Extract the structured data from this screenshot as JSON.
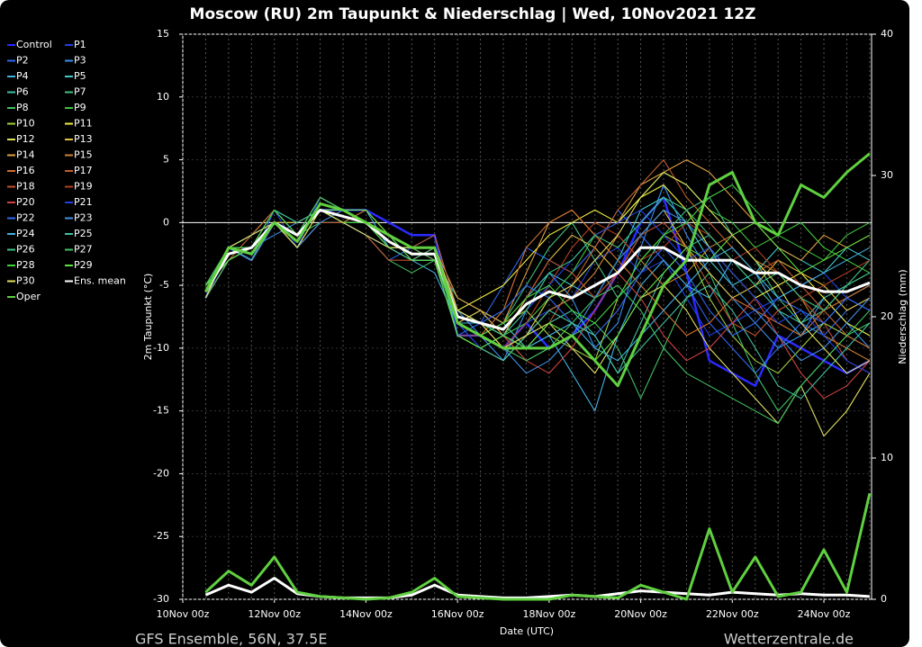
{
  "chart_data": {
    "type": "line",
    "title": "Moscow  (RU)  2m Taupunkt & Niederschlag | Wed, 10Nov2021 12Z",
    "footer_left": "GFS Ensemble, 56N, 37.5E",
    "footer_right": "Wetterzentrale.de",
    "x_label": "Date (UTC)",
    "y_label": "2m Taupunkt (°C)",
    "y2_label": "Niederschlag (mm)",
    "categories": [
      "10Nov 00z",
      null,
      null,
      null,
      "12Nov 00z",
      null,
      null,
      null,
      "14Nov 00z",
      null,
      null,
      null,
      "16Nov 00z",
      null,
      null,
      null,
      "18Nov 00z",
      null,
      null,
      null,
      "20Nov 00z",
      null,
      null,
      null,
      "22Nov 00z",
      null,
      null,
      null,
      "24Nov 00z",
      null,
      null
    ],
    "ylim": [
      -30,
      15
    ],
    "yticks": [
      -30,
      -25,
      -20,
      -15,
      -10,
      -5,
      0,
      5,
      10,
      15
    ],
    "y2lim": [
      0,
      40
    ],
    "y2ticks": [
      0,
      10,
      20,
      30,
      40
    ],
    "grid": true,
    "series": [
      {
        "name": "Control",
        "color": "#2a2aff",
        "values": [
          null,
          -6,
          -2,
          -3,
          0,
          -1,
          1,
          1,
          1,
          0,
          -1,
          -1,
          -9,
          -9,
          -10,
          -8,
          -10,
          -9,
          -7,
          -4,
          0,
          2,
          -4,
          -11,
          -12,
          -13,
          -9,
          -10,
          -11,
          -12,
          -11
        ]
      },
      {
        "name": "P1",
        "color": "#2040e0",
        "values": [
          null,
          -5,
          -3,
          -2,
          1,
          -2,
          2,
          1,
          0,
          -2,
          -2,
          -3,
          -8,
          -10,
          -9,
          -8,
          -7,
          -6,
          -3,
          -2,
          -4,
          -3,
          -6,
          -9,
          -8,
          -7,
          -6,
          -5,
          -4,
          -6,
          -7
        ]
      },
      {
        "name": "P2",
        "color": "#3068f0",
        "values": [
          null,
          -6,
          -2,
          -1,
          0,
          -1,
          1,
          0,
          -1,
          -3,
          -2,
          -1,
          -7,
          -8,
          -5,
          -2,
          -3,
          -4,
          -2,
          1,
          -1,
          -3,
          -5,
          -8,
          -10,
          -12,
          -10,
          -8,
          -9,
          -7,
          -6
        ]
      },
      {
        "name": "P3",
        "color": "#3890f0",
        "values": [
          null,
          -5,
          -3,
          -2,
          -1,
          0,
          1,
          1,
          0,
          -1,
          -3,
          -2,
          -9,
          -9,
          -11,
          -7,
          -4,
          -6,
          -10,
          -8,
          -2,
          3,
          -1,
          -4,
          -6,
          -8,
          -10,
          -9,
          -6,
          -8,
          -10
        ]
      },
      {
        "name": "P4",
        "color": "#40b0e0",
        "values": [
          null,
          -6,
          -2,
          -3,
          0,
          -2,
          0,
          0,
          -1,
          -2,
          -3,
          -4,
          -8,
          -7,
          -8,
          -10,
          -9,
          -12,
          -15,
          -9,
          -5,
          -3,
          -5,
          -6,
          -3,
          -4,
          -7,
          -9,
          -8,
          -6,
          -5
        ]
      },
      {
        "name": "P5",
        "color": "#40c8c8",
        "values": [
          null,
          -5,
          -2,
          -2,
          1,
          -1,
          2,
          1,
          1,
          -1,
          -2,
          -2,
          -7,
          -8,
          -9,
          -6,
          -4,
          -5,
          -6,
          -3,
          1,
          2,
          0,
          -3,
          -5,
          -4,
          -2,
          -3,
          -4,
          -2,
          -3
        ]
      },
      {
        "name": "P6",
        "color": "#40c0a0",
        "values": [
          null,
          -6,
          -3,
          -2,
          0,
          -1,
          1,
          0,
          0,
          -2,
          -3,
          -3,
          -6,
          -7,
          -8,
          -10,
          -8,
          -7,
          -9,
          -12,
          -8,
          -4,
          -2,
          -1,
          -3,
          -5,
          -7,
          -8,
          -6,
          -5,
          -4
        ]
      },
      {
        "name": "P7",
        "color": "#40c080",
        "values": [
          null,
          -5,
          -2,
          -1,
          1,
          0,
          1,
          1,
          0,
          -1,
          -2,
          -2,
          -8,
          -9,
          -8,
          -5,
          -2,
          0,
          -3,
          -6,
          -4,
          -1,
          1,
          2,
          -1,
          -3,
          -6,
          -8,
          -7,
          -5,
          -3
        ]
      },
      {
        "name": "P8",
        "color": "#40c060",
        "values": [
          null,
          -6,
          -3,
          -2,
          0,
          -1,
          0,
          0,
          -1,
          -3,
          -4,
          -3,
          -9,
          -10,
          -9,
          -11,
          -10,
          -9,
          -8,
          -10,
          -14,
          -10,
          -6,
          -4,
          -8,
          -12,
          -15,
          -13,
          -11,
          -9,
          -8
        ]
      },
      {
        "name": "P9",
        "color": "#40c040",
        "values": [
          null,
          -5,
          -2,
          -2,
          1,
          -1,
          1,
          1,
          0,
          -2,
          -2,
          -2,
          -7,
          -8,
          -9,
          -8,
          -6,
          -4,
          -1,
          0,
          2,
          4,
          3,
          1,
          0,
          -2,
          -1,
          -2,
          -3,
          -1,
          0
        ]
      },
      {
        "name": "P10",
        "color": "#a0d040",
        "values": [
          null,
          -6,
          -2,
          -3,
          0,
          -1,
          2,
          1,
          1,
          -1,
          -2,
          -3,
          -8,
          -9,
          -8,
          -7,
          -9,
          -10,
          -11,
          -6,
          -3,
          -1,
          -2,
          -6,
          -9,
          -11,
          -12,
          -10,
          -8,
          -9,
          -10
        ]
      },
      {
        "name": "P11",
        "color": "#f0f040",
        "values": [
          null,
          -5,
          -3,
          -2,
          0,
          -2,
          1,
          0,
          0,
          -2,
          -3,
          -2,
          -7,
          -6,
          -5,
          -3,
          -1,
          0,
          1,
          0,
          2,
          3,
          1,
          -2,
          -4,
          -6,
          -5,
          -4,
          -6,
          -8,
          -9
        ]
      },
      {
        "name": "P12",
        "color": "#e0e060",
        "values": [
          null,
          -6,
          -2,
          -1,
          1,
          -1,
          1,
          1,
          0,
          -1,
          -2,
          -2,
          -9,
          -10,
          -11,
          -9,
          -8,
          -10,
          -12,
          -9,
          -6,
          -5,
          -7,
          -10,
          -12,
          -14,
          -16,
          -13,
          -17,
          -15,
          -12
        ]
      },
      {
        "name": "P13",
        "color": "#e0c040",
        "values": [
          null,
          -5,
          -2,
          -2,
          0,
          0,
          1,
          0,
          0,
          -2,
          -3,
          -3,
          -8,
          -7,
          -9,
          -6,
          -3,
          -1,
          -2,
          -4,
          -1,
          1,
          -2,
          -4,
          -6,
          -5,
          -3,
          -4,
          -5,
          -7,
          -6
        ]
      },
      {
        "name": "P14",
        "color": "#e0a040",
        "values": [
          null,
          -6,
          -3,
          -2,
          1,
          -1,
          2,
          1,
          0,
          -1,
          -2,
          -2,
          -6,
          -7,
          -8,
          -4,
          0,
          1,
          -1,
          0,
          3,
          4,
          5,
          4,
          2,
          0,
          -2,
          -3,
          -1,
          -2,
          -1
        ]
      },
      {
        "name": "P15",
        "color": "#d08030",
        "values": [
          null,
          -5,
          -2,
          -3,
          0,
          -1,
          1,
          0,
          1,
          -1,
          -2,
          -3,
          -7,
          -8,
          -10,
          -9,
          -7,
          -6,
          -4,
          -1,
          -3,
          -5,
          -4,
          -2,
          -1,
          -3,
          -4,
          -6,
          -9,
          -10,
          -11
        ]
      },
      {
        "name": "P16",
        "color": "#d07030",
        "values": [
          null,
          -6,
          -2,
          -2,
          0,
          -1,
          1,
          1,
          0,
          -2,
          -3,
          -2,
          -8,
          -9,
          -7,
          -2,
          0,
          1,
          -1,
          -3,
          -5,
          -7,
          -9,
          -8,
          -6,
          -7,
          -8,
          -9,
          -7,
          -6,
          -5
        ]
      },
      {
        "name": "P17",
        "color": "#c06030",
        "values": [
          null,
          -5,
          -3,
          -1,
          1,
          -1,
          1,
          0,
          0,
          -1,
          -2,
          -1,
          -7,
          -8,
          -9,
          -10,
          -8,
          -5,
          -2,
          1,
          3,
          5,
          2,
          0,
          -2,
          -4,
          -3,
          -5,
          -7,
          -9,
          -10
        ]
      },
      {
        "name": "P18",
        "color": "#c05030",
        "values": [
          null,
          -6,
          -2,
          -2,
          0,
          -2,
          0,
          0,
          -1,
          -3,
          -3,
          -3,
          -9,
          -9,
          -8,
          -6,
          -3,
          -4,
          -6,
          -4,
          -1,
          0,
          -2,
          -5,
          -8,
          -9,
          -7,
          -6,
          -8,
          -11,
          -12
        ]
      },
      {
        "name": "P19",
        "color": "#b04020",
        "values": [
          null,
          -5,
          -2,
          -2,
          1,
          -1,
          2,
          1,
          1,
          -1,
          -2,
          -2,
          -8,
          -9,
          -10,
          -8,
          -5,
          -2,
          0,
          -1,
          -3,
          -2,
          0,
          -1,
          -3,
          -2,
          -4,
          -6,
          -5,
          -4,
          -3
        ]
      },
      {
        "name": "P20",
        "color": "#d04040",
        "values": [
          null,
          -6,
          -3,
          -2,
          0,
          -1,
          1,
          0,
          0,
          -2,
          -2,
          -3,
          -7,
          -8,
          -9,
          -11,
          -12,
          -10,
          -7,
          -4,
          -6,
          -9,
          -11,
          -10,
          -8,
          -6,
          -9,
          -12,
          -14,
          -13,
          -11
        ]
      },
      {
        "name": "P21",
        "color": "#2040e0",
        "values": [
          null,
          -5,
          -2,
          -2,
          0,
          -1,
          1,
          1,
          0,
          -1,
          -2,
          -2,
          -8,
          -10,
          -9,
          -7,
          -5,
          -3,
          -1,
          0,
          1,
          -1,
          -3,
          -2,
          -4,
          -6,
          -8,
          -7,
          -9,
          -11,
          -12
        ]
      },
      {
        "name": "P22",
        "color": "#3068f0",
        "values": [
          null,
          -6,
          -2,
          -3,
          1,
          -1,
          1,
          0,
          -1,
          -2,
          -3,
          -3,
          -9,
          -8,
          -7,
          -5,
          -6,
          -8,
          -9,
          -7,
          -4,
          -2,
          -4,
          -7,
          -9,
          -8,
          -6,
          -7,
          -8,
          -6,
          -7
        ]
      },
      {
        "name": "P23",
        "color": "#4090e0",
        "values": [
          null,
          -5,
          -3,
          -2,
          0,
          -2,
          0,
          1,
          0,
          -1,
          -2,
          -2,
          -7,
          -9,
          -10,
          -12,
          -11,
          -9,
          -6,
          -3,
          -1,
          1,
          0,
          -2,
          -5,
          -7,
          -9,
          -11,
          -10,
          -8,
          -6
        ]
      },
      {
        "name": "P24",
        "color": "#40b0e0",
        "values": [
          null,
          -6,
          -2,
          -1,
          0,
          -1,
          2,
          1,
          1,
          -2,
          -3,
          -3,
          -8,
          -8,
          -9,
          -10,
          -9,
          -8,
          -10,
          -11,
          -9,
          -7,
          -5,
          -3,
          -2,
          -4,
          -6,
          -5,
          -4,
          -3,
          -2
        ]
      },
      {
        "name": "P25",
        "color": "#40c0a0",
        "values": [
          null,
          -5,
          -2,
          -2,
          1,
          0,
          1,
          0,
          0,
          -1,
          -2,
          -2,
          -9,
          -10,
          -11,
          -9,
          -7,
          -8,
          -9,
          -12,
          -10,
          -8,
          -6,
          -5,
          -7,
          -10,
          -13,
          -14,
          -12,
          -10,
          -8
        ]
      },
      {
        "name": "P26",
        "color": "#40c080",
        "values": [
          null,
          -6,
          -3,
          -2,
          0,
          -1,
          1,
          1,
          0,
          -2,
          -3,
          -2,
          -7,
          -8,
          -9,
          -7,
          -4,
          -3,
          -1,
          -2,
          0,
          2,
          1,
          -1,
          -3,
          -5,
          -4,
          -6,
          -7,
          -5,
          -4
        ]
      },
      {
        "name": "P27",
        "color": "#40c060",
        "values": [
          null,
          -5,
          -2,
          -3,
          0,
          -1,
          2,
          1,
          0,
          -1,
          -2,
          -3,
          -8,
          -9,
          -10,
          -11,
          -10,
          -8,
          -6,
          -5,
          -7,
          -10,
          -12,
          -13,
          -14,
          -15,
          -16,
          -13,
          -11,
          -9,
          -7
        ]
      },
      {
        "name": "P28",
        "color": "#40d040",
        "values": [
          null,
          -6,
          -2,
          -2,
          1,
          -1,
          1,
          0,
          0,
          -2,
          -2,
          -2,
          -8,
          -9,
          -8,
          -6,
          -5,
          -7,
          -8,
          -6,
          -3,
          -1,
          0,
          2,
          3,
          1,
          -1,
          0,
          -2,
          -3,
          -4
        ]
      },
      {
        "name": "P29",
        "color": "#60e040",
        "values": [
          null,
          -5,
          -3,
          -2,
          0,
          -1,
          1,
          1,
          1,
          -1,
          -3,
          -3,
          -9,
          -10,
          -9,
          -10,
          -8,
          -9,
          -11,
          -9,
          -6,
          -4,
          -2,
          -3,
          -1,
          0,
          -2,
          -4,
          -3,
          -2,
          -1
        ]
      },
      {
        "name": "P30",
        "color": "#e0e060",
        "values": [
          null,
          -6,
          -2,
          -1,
          0,
          -2,
          1,
          0,
          -1,
          -2,
          -2,
          -2,
          -7,
          -8,
          -10,
          -9,
          -6,
          -5,
          -3,
          -1,
          2,
          4,
          3,
          1,
          -1,
          -3,
          -5,
          -8,
          -10,
          -12,
          -11
        ]
      },
      {
        "name": "Ens. mean",
        "color": "#ffffff",
        "values": [
          null,
          -5.5,
          -2.5,
          -2,
          0,
          -1,
          1,
          0.5,
          0,
          -1.5,
          -2.5,
          -2.5,
          -7.5,
          -8,
          -8.5,
          -6.5,
          -5.5,
          -6,
          -5,
          -4,
          -2,
          -2,
          -3,
          -3,
          -3,
          -4,
          -4,
          -5,
          -5.5,
          -5.5,
          -4.8
        ]
      },
      {
        "name": "Oper",
        "color": "#60d040",
        "values": [
          null,
          -5.5,
          -2,
          -2.5,
          0,
          -1.5,
          1.5,
          1,
          0,
          -1,
          -2,
          -2,
          -8,
          -9,
          -10,
          -10,
          -10,
          -9,
          -11,
          -13,
          -9,
          -5,
          -3,
          3,
          4,
          0,
          -1,
          3,
          2,
          4,
          5.5
        ]
      },
      {
        "name": "Ens. mean",
        "color": "#ffffff",
        "axis": "y2",
        "values": [
          null,
          0.3,
          1,
          0.5,
          1.5,
          0.4,
          0.2,
          0.1,
          0.1,
          0.1,
          0.3,
          1,
          0.3,
          0.2,
          0.1,
          0.1,
          0.2,
          0.3,
          0.2,
          0.4,
          0.6,
          0.5,
          0.4,
          0.3,
          0.5,
          0.4,
          0.3,
          0.4,
          0.3,
          0.3,
          0.2
        ]
      },
      {
        "name": "Oper",
        "color": "#60d040",
        "axis": "y2",
        "values": [
          null,
          0.5,
          2,
          1,
          3,
          0.5,
          0.2,
          0.1,
          0,
          0.1,
          0.5,
          1.5,
          0.2,
          0.1,
          0,
          0,
          0,
          0.3,
          0.2,
          0.1,
          1,
          0.5,
          0,
          5,
          0.5,
          3,
          0.2,
          0.5,
          3.5,
          0.5,
          7.5
        ]
      }
    ]
  }
}
